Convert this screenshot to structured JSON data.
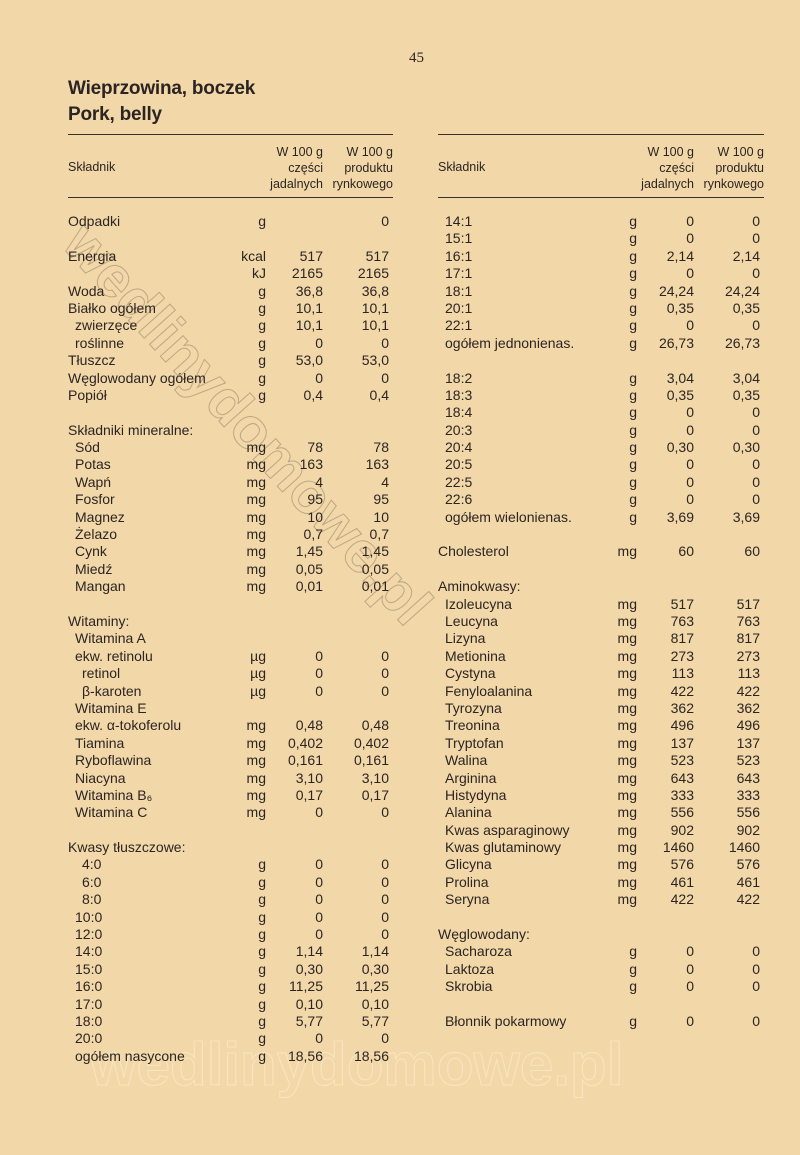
{
  "page_number": "45",
  "title_pl": "Wieprzowina, boczek",
  "title_en": "Pork, belly",
  "watermark": "wedlinydomowe.pl",
  "header": {
    "label": "Składnik",
    "col1": [
      "W 100 g",
      "części",
      "jadalnych"
    ],
    "col2": [
      "W 100 g",
      "produktu",
      "rynkowego"
    ]
  },
  "left_sections": [
    [
      [
        "Odpadki",
        "g",
        "",
        "0",
        0
      ]
    ],
    [
      [
        "Energia",
        "kcal",
        "517",
        "517",
        0
      ],
      [
        "",
        "kJ",
        "2165",
        "2165",
        0
      ],
      [
        "Woda",
        "g",
        "36,8",
        "36,8",
        0
      ],
      [
        "Białko ogółem",
        "g",
        "10,1",
        "10,1",
        0
      ],
      [
        "zwierzęce",
        "g",
        "10,1",
        "10,1",
        1
      ],
      [
        "roślinne",
        "g",
        "0",
        "0",
        1
      ],
      [
        "Tłuszcz",
        "g",
        "53,0",
        "53,0",
        0
      ],
      [
        "Węglowodany ogółem",
        "g",
        "0",
        "0",
        0
      ],
      [
        "Popiół",
        "g",
        "0,4",
        "0,4",
        0
      ]
    ],
    [
      [
        "Składniki mineralne:",
        "",
        "",
        "",
        0
      ],
      [
        "Sód",
        "mg",
        "78",
        "78",
        1
      ],
      [
        "Potas",
        "mg",
        "163",
        "163",
        1
      ],
      [
        "Wapń",
        "mg",
        "4",
        "4",
        1
      ],
      [
        "Fosfor",
        "mg",
        "95",
        "95",
        1
      ],
      [
        "Magnez",
        "mg",
        "10",
        "10",
        1
      ],
      [
        "Żelazo",
        "mg",
        "0,7",
        "0,7",
        1
      ],
      [
        "Cynk",
        "mg",
        "1,45",
        "1,45",
        1
      ],
      [
        "Miedź",
        "mg",
        "0,05",
        "0,05",
        1
      ],
      [
        "Mangan",
        "mg",
        "0,01",
        "0,01",
        1
      ]
    ],
    [
      [
        "Witaminy:",
        "",
        "",
        "",
        0
      ],
      [
        "Witamina A",
        "",
        "",
        "",
        1
      ],
      [
        "ekw. retinolu",
        "µg",
        "0",
        "0",
        1
      ],
      [
        "retinol",
        "µg",
        "0",
        "0",
        2
      ],
      [
        "β-karoten",
        "µg",
        "0",
        "0",
        2
      ],
      [
        "Witamina E",
        "",
        "",
        "",
        1
      ],
      [
        "ekw. α-tokoferolu",
        "mg",
        "0,48",
        "0,48",
        1
      ],
      [
        "Tiamina",
        "mg",
        "0,402",
        "0,402",
        1
      ],
      [
        "Ryboflawina",
        "mg",
        "0,161",
        "0,161",
        1
      ],
      [
        "Niacyna",
        "mg",
        "3,10",
        "3,10",
        1
      ],
      [
        "Witamina B₆",
        "mg",
        "0,17",
        "0,17",
        1
      ],
      [
        "Witamina C",
        "mg",
        "0",
        "0",
        1
      ]
    ],
    [
      [
        "Kwasy tłuszczowe:",
        "",
        "",
        "",
        0
      ],
      [
        "4:0",
        "g",
        "0",
        "0",
        2
      ],
      [
        "6:0",
        "g",
        "0",
        "0",
        2
      ],
      [
        "8:0",
        "g",
        "0",
        "0",
        2
      ],
      [
        "10:0",
        "g",
        "0",
        "0",
        1
      ],
      [
        "12:0",
        "g",
        "0",
        "0",
        1
      ],
      [
        "14:0",
        "g",
        "1,14",
        "1,14",
        1
      ],
      [
        "15:0",
        "g",
        "0,30",
        "0,30",
        1
      ],
      [
        "16:0",
        "g",
        "11,25",
        "11,25",
        1
      ],
      [
        "17:0",
        "g",
        "0,10",
        "0,10",
        1
      ],
      [
        "18:0",
        "g",
        "5,77",
        "5,77",
        1
      ],
      [
        "20:0",
        "g",
        "0",
        "0",
        1
      ],
      [
        "ogółem nasycone",
        "g",
        "18,56",
        "18,56",
        1
      ]
    ]
  ],
  "right_sections": [
    [
      [
        "14:1",
        "g",
        "0",
        "0",
        1
      ],
      [
        "15:1",
        "g",
        "0",
        "0",
        1
      ],
      [
        "16:1",
        "g",
        "2,14",
        "2,14",
        1
      ],
      [
        "17:1",
        "g",
        "0",
        "0",
        1
      ],
      [
        "18:1",
        "g",
        "24,24",
        "24,24",
        1
      ],
      [
        "20:1",
        "g",
        "0,35",
        "0,35",
        1
      ],
      [
        "22:1",
        "g",
        "0",
        "0",
        1
      ],
      [
        "ogółem jednonienas.",
        "g",
        "26,73",
        "26,73",
        1
      ]
    ],
    [
      [
        "18:2",
        "g",
        "3,04",
        "3,04",
        1
      ],
      [
        "18:3",
        "g",
        "0,35",
        "0,35",
        1
      ],
      [
        "18:4",
        "g",
        "0",
        "0",
        1
      ],
      [
        "20:3",
        "g",
        "0",
        "0",
        1
      ],
      [
        "20:4",
        "g",
        "0,30",
        "0,30",
        1
      ],
      [
        "20:5",
        "g",
        "0",
        "0",
        1
      ],
      [
        "22:5",
        "g",
        "0",
        "0",
        1
      ],
      [
        "22:6",
        "g",
        "0",
        "0",
        1
      ],
      [
        "ogółem wielonienas.",
        "g",
        "3,69",
        "3,69",
        1
      ]
    ],
    [
      [
        "Cholesterol",
        "mg",
        "60",
        "60",
        0
      ]
    ],
    [
      [
        "Aminokwasy:",
        "",
        "",
        "",
        0
      ],
      [
        "Izoleucyna",
        "mg",
        "517",
        "517",
        1
      ],
      [
        "Leucyna",
        "mg",
        "763",
        "763",
        1
      ],
      [
        "Lizyna",
        "mg",
        "817",
        "817",
        1
      ],
      [
        "Metionina",
        "mg",
        "273",
        "273",
        1
      ],
      [
        "Cystyna",
        "mg",
        "113",
        "113",
        1
      ],
      [
        "Fenyloalanina",
        "mg",
        "422",
        "422",
        1
      ],
      [
        "Tyrozyna",
        "mg",
        "362",
        "362",
        1
      ],
      [
        "Treonina",
        "mg",
        "496",
        "496",
        1
      ],
      [
        "Tryptofan",
        "mg",
        "137",
        "137",
        1
      ],
      [
        "Walina",
        "mg",
        "523",
        "523",
        1
      ],
      [
        "Arginina",
        "mg",
        "643",
        "643",
        1
      ],
      [
        "Histydyna",
        "mg",
        "333",
        "333",
        1
      ],
      [
        "Alanina",
        "mg",
        "556",
        "556",
        1
      ],
      [
        "Kwas asparaginowy",
        "mg",
        "902",
        "902",
        1
      ],
      [
        "Kwas glutaminowy",
        "mg",
        "1460",
        "1460",
        1
      ],
      [
        "Glicyna",
        "mg",
        "576",
        "576",
        1
      ],
      [
        "Prolina",
        "mg",
        "461",
        "461",
        1
      ],
      [
        "Seryna",
        "mg",
        "422",
        "422",
        1
      ]
    ],
    [
      [
        "Węglowodany:",
        "",
        "",
        "",
        0
      ],
      [
        "Sacharoza",
        "g",
        "0",
        "0",
        1
      ],
      [
        "Laktoza",
        "g",
        "0",
        "0",
        1
      ],
      [
        "Skrobia",
        "g",
        "0",
        "0",
        1
      ]
    ],
    [
      [
        "Błonnik pokarmowy",
        "g",
        "0",
        "0",
        1
      ]
    ]
  ]
}
